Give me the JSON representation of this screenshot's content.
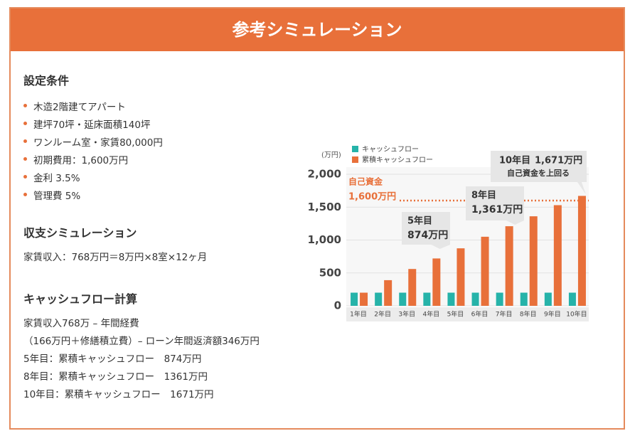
{
  "header": {
    "title": "参考シミュレーション"
  },
  "sections": [
    {
      "heading": "設定条件",
      "items": [
        "木造2階建てアパート",
        "建坪70坪・延床面積140坪",
        "ワンルーム室・家賃80,000円",
        "初期費用：1,600万円",
        "金利 3.5%",
        "管理費 5%"
      ]
    },
    {
      "heading": "収支シミュレーション",
      "lines": [
        "家賃収入：768万円＝8万円×8室×12ヶ月"
      ]
    },
    {
      "heading": "キャッシュフロー計算",
      "lines": [
        "家賃収入768万 – 年間経費",
        "（166万円＋修繕積立費）– ローン年間返済額346万円",
        "5年目：累積キャッシュフロー　874万円",
        "8年目：累積キャッシュフロー　1361万円",
        "10年目：累積キャッシュフロー　1671万円"
      ]
    }
  ],
  "chart_data": {
    "type": "bar",
    "y_unit": "(万円)",
    "categories": [
      "1年目",
      "2年目",
      "3年目",
      "4年目",
      "5年目",
      "6年目",
      "7年目",
      "8年目",
      "9年目",
      "10年目"
    ],
    "series": [
      {
        "name": "キャッシュフロー",
        "color": "#26b3a9",
        "values": [
          200,
          200,
          200,
          200,
          200,
          200,
          200,
          200,
          200,
          200
        ]
      },
      {
        "name": "累積キャッシュフロー",
        "color": "#e8703a",
        "values": [
          200,
          390,
          560,
          720,
          874,
          1050,
          1210,
          1361,
          1530,
          1671
        ],
        "value_labels": [
          null,
          null,
          null,
          null,
          "874万円",
          null,
          null,
          "1,361万円",
          null,
          "1,671万円"
        ]
      }
    ],
    "annotations": [
      null,
      null,
      null,
      null,
      [
        "5年目"
      ],
      null,
      null,
      [
        "8年目"
      ],
      null,
      [
        "10年目",
        "自己資金を上回る"
      ]
    ],
    "reference_line": {
      "value": 1600,
      "label": "自己資金",
      "value_label": "1,600万円",
      "color": "#e8703a"
    },
    "ylim": [
      0,
      2000
    ],
    "yticks": [
      0,
      500,
      {
        "value": 1000,
        "label": "1,000"
      },
      {
        "value": 1500,
        "label": "1,500"
      },
      {
        "value": 2000,
        "label": "2,000"
      }
    ],
    "grid": true
  }
}
